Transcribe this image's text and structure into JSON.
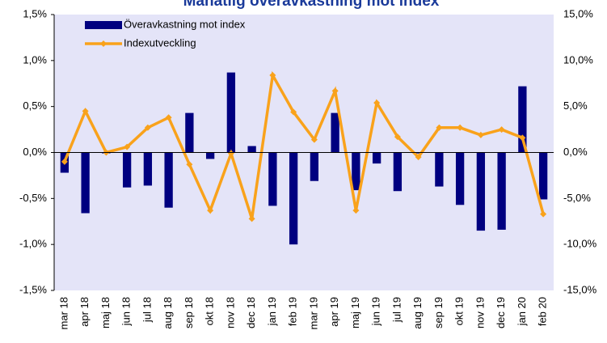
{
  "chart_data": {
    "type": "bar-line",
    "title": "Månatlig överavkastning mot index",
    "categories": [
      "mar 18",
      "apr 18",
      "maj 18",
      "jun 18",
      "jul 18",
      "aug 18",
      "sep 18",
      "okt 18",
      "nov 18",
      "dec 18",
      "jan 19",
      "feb 19",
      "mar 19",
      "apr 19",
      "maj 19",
      "jun 19",
      "jul 19",
      "aug 19",
      "sep 19",
      "okt 19",
      "nov 19",
      "dec 19",
      "jan 20",
      "feb 20"
    ],
    "series": [
      {
        "name": "Överavkastning mot index",
        "color": "#000080",
        "type": "bar",
        "values": [
          -0.22,
          -0.66,
          -0.01,
          -0.38,
          -0.36,
          -0.6,
          0.43,
          -0.07,
          0.87,
          0.07,
          -0.58,
          -1.0,
          -0.31,
          0.43,
          -0.41,
          -0.12,
          -0.42,
          -0.01,
          -0.37,
          -0.57,
          -0.85,
          -0.84,
          0.72,
          -0.51
        ]
      },
      {
        "name": "Indexutveckling",
        "color": "#f9a21b",
        "type": "line",
        "axis": "y2",
        "values": [
          -1.0,
          4.5,
          0.0,
          0.6,
          2.7,
          3.8,
          -1.3,
          -6.3,
          -0.1,
          -7.2,
          8.4,
          4.4,
          1.4,
          6.7,
          -6.3,
          5.4,
          1.7,
          -0.5,
          2.7,
          2.7,
          1.9,
          2.5,
          1.6,
          -6.7
        ]
      }
    ],
    "ylim": [
      -1.5,
      1.5
    ],
    "yticks": [
      {
        "value": -1.5,
        "label": "-1,5%"
      },
      {
        "value": -1.0,
        "label": "-1,0%"
      },
      {
        "value": -0.5,
        "label": "-0,5%"
      },
      {
        "value": 0,
        "label": "0,0%"
      },
      {
        "value": 0.5,
        "label": "0,5%"
      },
      {
        "value": 1.0,
        "label": "1,0%"
      },
      {
        "value": 1.5,
        "label": "1,5%"
      }
    ],
    "y2lim": [
      -15,
      15
    ],
    "y2ticks": [
      {
        "value": -15,
        "label": "-15,0%"
      },
      {
        "value": -10,
        "label": "-10,0%"
      },
      {
        "value": -5,
        "label": "-5,0%"
      },
      {
        "value": 0,
        "label": "0,0%"
      },
      {
        "value": 5,
        "label": "5,0%"
      },
      {
        "value": 10,
        "label": "10,0%"
      },
      {
        "value": 15,
        "label": "15,0%"
      }
    ],
    "legend": "top-left",
    "grid": false
  }
}
